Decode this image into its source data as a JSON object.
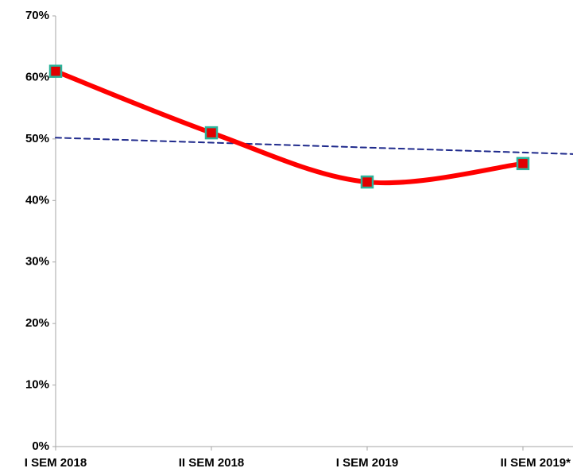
{
  "chart_data": {
    "type": "line",
    "categories": [
      "I SEM 2018",
      "II SEM 2018",
      "I SEM 2019",
      "II SEM 2019*"
    ],
    "series": [
      {
        "color": "#ff0000",
        "marker_fill": "#e00000",
        "marker_edge": "#2bb39a",
        "smooth": true,
        "values": [
          61,
          51,
          43,
          46
        ]
      },
      {
        "color": "#1f2a8c",
        "dashed": true,
        "values": [
          50.2,
          49.4,
          48.6,
          47.8
        ]
      }
    ],
    "ylim": [
      0,
      70
    ],
    "yticks": [
      {
        "value": 0,
        "label": "0%"
      },
      {
        "value": 10,
        "label": "10%"
      },
      {
        "value": 20,
        "label": "20%"
      },
      {
        "value": 30,
        "label": "30%"
      },
      {
        "value": 40,
        "label": "40%"
      },
      {
        "value": 50,
        "label": "50%"
      },
      {
        "value": 60,
        "label": "60%"
      },
      {
        "value": 70,
        "label": "70%"
      }
    ],
    "grid": false
  }
}
